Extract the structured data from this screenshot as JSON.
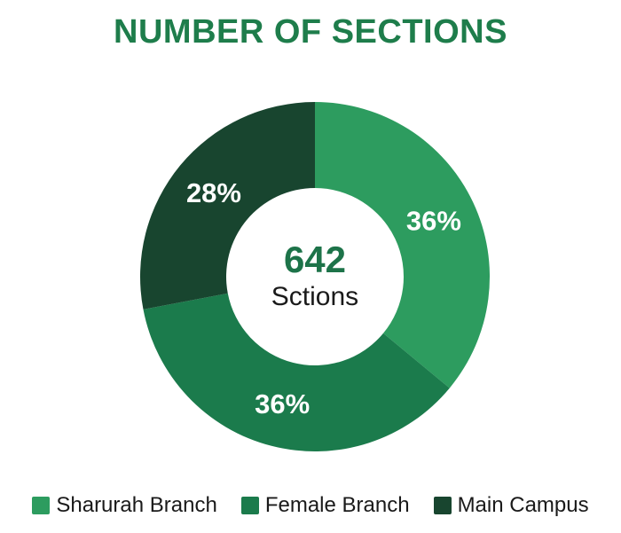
{
  "colors": {
    "background": "#FFFFFF",
    "title": "#1E7D4B",
    "center_value": "#1D7349",
    "text": "#1A1A1A",
    "percent_label": "#FFFFFF"
  },
  "chart_data": {
    "type": "pie",
    "subtype": "donut",
    "title": "NUMBER OF SECTIONS",
    "categories": [
      "Sharurah Branch",
      "Female Branch",
      "Main Campus"
    ],
    "values": [
      36,
      36,
      28
    ],
    "labels": [
      "36%",
      "36%",
      "28%"
    ],
    "colors": [
      "#2D9C5F",
      "#1B7B4C",
      "#18452F"
    ],
    "unit": "percent",
    "center_value": "642",
    "center_label": "Sctions",
    "legend_position": "bottom",
    "start_angle_deg": 0,
    "direction": "clockwise"
  }
}
